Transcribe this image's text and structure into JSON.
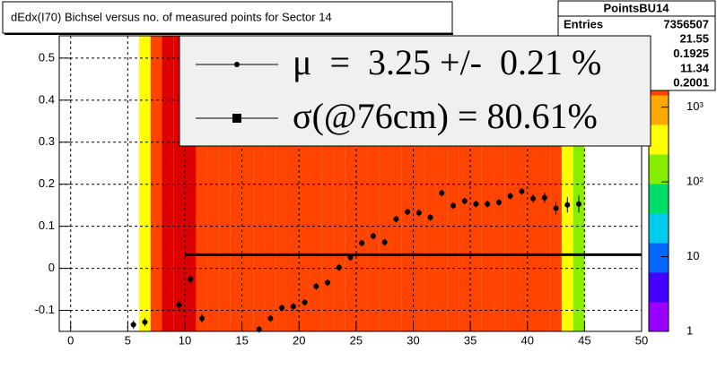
{
  "chart_data": {
    "type": "heatmap",
    "title": "dEdx(I70) Bichsel versus no. of measured points for Sector 14",
    "xlim": [
      -1,
      50
    ],
    "ylim": [
      -0.15,
      0.553
    ],
    "xticks": [
      0,
      5,
      10,
      15,
      20,
      25,
      30,
      35,
      40,
      45,
      50
    ],
    "yticks": [
      -0.1,
      0,
      0.1,
      0.2,
      0.3,
      0.4,
      0.5
    ],
    "grid": true,
    "x_edges": [
      6,
      7,
      8,
      9,
      10,
      11,
      12,
      13,
      14,
      15,
      16,
      17,
      18,
      19,
      20,
      21,
      22,
      23,
      24,
      25,
      26,
      27,
      28,
      29,
      30,
      31,
      32,
      33,
      34,
      35,
      36,
      37,
      38,
      39,
      40,
      41,
      42,
      43,
      44,
      45
    ],
    "z": [
      500,
      2000,
      6000,
      8000,
      6000,
      5000,
      3500,
      2500,
      2000,
      2000,
      2000,
      2000,
      2000,
      2000,
      2000,
      2000,
      2000,
      2000,
      2000,
      2000,
      2000,
      2000,
      2000,
      2000,
      2000,
      2000,
      2000,
      2000,
      2000,
      2000,
      2000,
      2000,
      2000,
      2000,
      2000,
      2000,
      2000,
      500,
      150
    ],
    "zlim": [
      1,
      9000
    ],
    "zscale": "log",
    "zticks": [
      1,
      10,
      {
        "value": 100,
        "label": "10²"
      },
      {
        "value": 1000,
        "label": "10³"
      }
    ],
    "palette": [
      "#9900ff",
      "#4400ff",
      "#0066ff",
      "#00ccee",
      "#00dd66",
      "#88ee00",
      "#ffff00",
      "#ffaa00",
      "#ff4400",
      "#dd0000"
    ],
    "profile": {
      "color": "#000000",
      "x": [
        5.5,
        6.5,
        7.5,
        8.5,
        9.5,
        10.5,
        11.5,
        12.5,
        13.5,
        14.5,
        15.5,
        16.5,
        17.5,
        18.5,
        19.5,
        20.5,
        21.5,
        22.5,
        23.5,
        24.5,
        25.5,
        26.5,
        27.5,
        28.5,
        29.5,
        30.5,
        31.5,
        32.5,
        33.5,
        34.5,
        35.5,
        36.5,
        37.5,
        38.5,
        39.5,
        40.5,
        41.5,
        42.5,
        43.5,
        44.5
      ],
      "values": [
        -0.134,
        -0.128,
        null,
        null,
        -0.087,
        -0.026,
        -0.119,
        null,
        null,
        null,
        null,
        -0.145,
        -0.119,
        -0.094,
        -0.091,
        -0.081,
        -0.043,
        -0.034,
        0.002,
        0.026,
        0.06,
        0.077,
        0.062,
        0.117,
        0.134,
        0.132,
        0.121,
        0.179,
        0.149,
        0.16,
        0.153,
        0.153,
        0.157,
        0.172,
        0.183,
        0.166,
        0.168,
        0.143,
        0.151,
        0.153
      ],
      "errors": [
        0.01,
        0.01,
        null,
        null,
        0.01,
        0.01,
        0.01,
        null,
        null,
        null,
        null,
        0.008,
        0.008,
        0.008,
        0.008,
        0.008,
        0.008,
        0.008,
        0.008,
        0.008,
        0.008,
        0.008,
        0.008,
        0.008,
        0.008,
        0.008,
        0.008,
        0.008,
        0.008,
        0.008,
        0.008,
        0.008,
        0.008,
        0.008,
        0.008,
        0.01,
        0.012,
        0.015,
        0.018,
        0.02
      ]
    },
    "fit_line": {
      "x": [
        10,
        50
      ],
      "y": 0.0325,
      "color": "#000000"
    },
    "legend": [
      "μ  =  3.25 +/-  0.21 %",
      "σ(@76cm) = 80.61%"
    ],
    "stats": {
      "title": "PointsBU14",
      "rows": [
        {
          "label": "Entries",
          "value": 7356507
        },
        {
          "value": 21.55
        },
        {
          "value": 0.1925
        },
        {
          "value": 11.34
        },
        {
          "value": 0.2001
        }
      ]
    }
  }
}
